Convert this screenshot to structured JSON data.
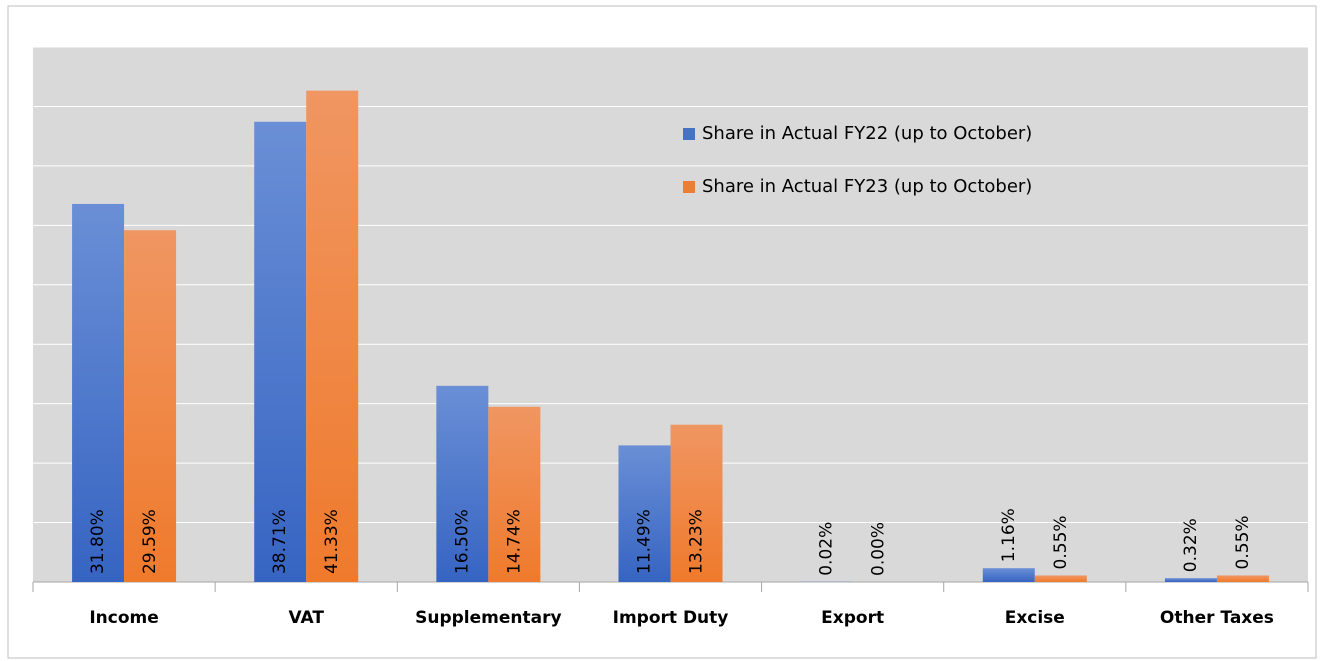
{
  "chart_data": {
    "type": "bar",
    "categories": [
      "Income",
      "VAT",
      "Supplementary",
      "Import Duty",
      "Export",
      "Excise",
      "Other Taxes"
    ],
    "series": [
      {
        "name": "Share in Actual FY22 (up to October)",
        "color": "#4472c4",
        "values": [
          31.8,
          38.71,
          16.5,
          11.49,
          0.02,
          1.16,
          0.32
        ],
        "value_labels": [
          "31.80%",
          "38.71%",
          "16.50%",
          "11.49%",
          "0.02%",
          "1.16%",
          "0.32%"
        ]
      },
      {
        "name": "Share in Actual FY23 (up to October)",
        "color": "#ed7d31",
        "values": [
          29.59,
          41.33,
          14.74,
          13.23,
          0.0,
          0.55,
          0.55
        ],
        "value_labels": [
          "29.59%",
          "41.33%",
          "14.74%",
          "13.23%",
          "0.00%",
          "0.55%",
          "0.55%"
        ]
      }
    ],
    "ylim": [
      0,
      45
    ],
    "yticks": [
      0,
      5,
      10,
      15,
      20,
      25,
      30,
      35,
      40,
      45
    ],
    "grid": true,
    "legend": "upper right"
  }
}
